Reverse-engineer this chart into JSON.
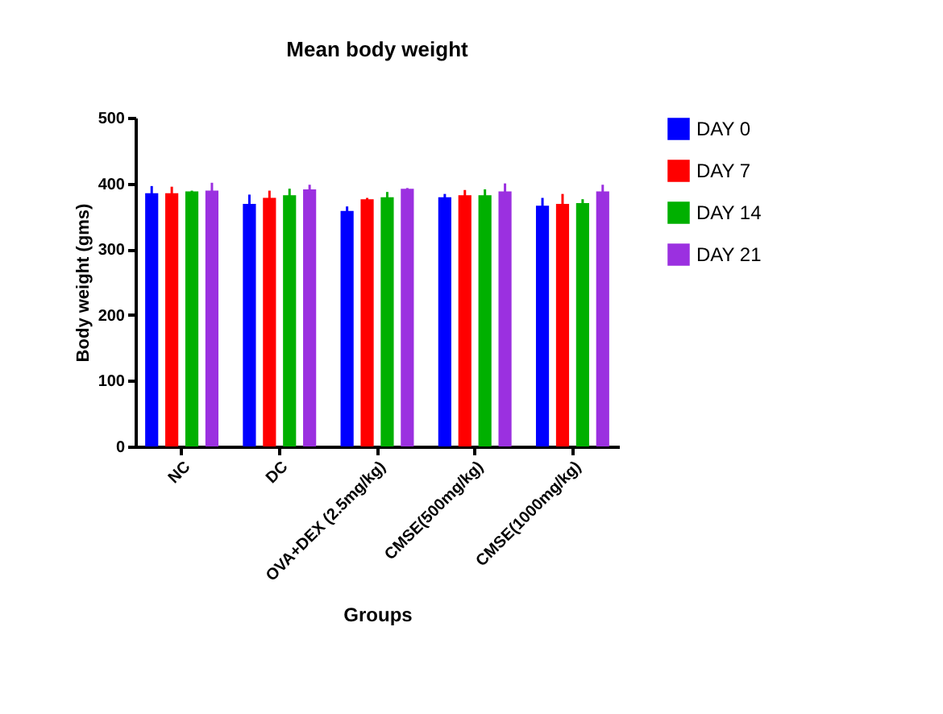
{
  "chart_data": {
    "type": "bar",
    "title": "Mean body weight",
    "xlabel": "Groups",
    "ylabel": "Body weight (gms)",
    "categories": [
      "NC",
      "DC",
      "OVA+DEX (2.5mg/kg)",
      "CMSE(500mg/kg)",
      "CMSE(1000mg/kg)"
    ],
    "series": [
      {
        "name": "DAY 0",
        "color": "#0000ff",
        "values": [
          385,
          369,
          358,
          379,
          366
        ],
        "errors": [
          11,
          14,
          7,
          5,
          12
        ]
      },
      {
        "name": "DAY 7",
        "color": "#ff0000",
        "values": [
          385,
          378,
          376,
          382,
          369
        ],
        "errors": [
          10,
          11,
          2,
          8,
          15
        ]
      },
      {
        "name": "DAY 14",
        "color": "#00b000",
        "values": [
          388,
          382,
          379,
          382,
          370
        ],
        "errors": [
          1,
          10,
          8,
          9,
          6
        ]
      },
      {
        "name": "DAY 21",
        "color": "#9b30e0",
        "values": [
          389,
          391,
          392,
          388,
          388
        ],
        "errors": [
          12,
          7,
          1,
          12,
          10
        ]
      }
    ],
    "ylim": [
      0,
      500
    ],
    "yticks": [
      0,
      100,
      200,
      300,
      400,
      500
    ],
    "grid": false,
    "legend": "right"
  }
}
